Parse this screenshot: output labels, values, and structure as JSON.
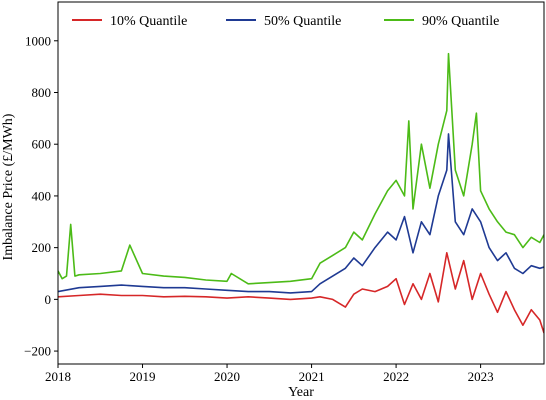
{
  "chart_data": {
    "type": "line",
    "xlabel": "Year",
    "ylabel": "Imbalance Price (£/MWh)",
    "xlim": [
      2018.0,
      2023.75
    ],
    "ylim": [
      -250,
      1150
    ],
    "xticks": [
      2018,
      2019,
      2020,
      2021,
      2022,
      2023
    ],
    "xtick_labels": [
      "2018",
      "2019",
      "2020",
      "2021",
      "2022",
      "2023"
    ],
    "yticks": [
      -200,
      0,
      200,
      400,
      600,
      800,
      1000
    ],
    "ytick_labels": [
      "−200",
      "0",
      "200",
      "400",
      "600",
      "800",
      "1000"
    ],
    "grid": false,
    "legend_position": "top",
    "colors": {
      "q10": "#d62728",
      "q50": "#1f3a93",
      "q90": "#4cbb17"
    },
    "series": [
      {
        "key": "q10",
        "name": "10% Quantile",
        "x": [
          2018.0,
          2018.25,
          2018.5,
          2018.75,
          2019.0,
          2019.25,
          2019.5,
          2019.75,
          2020.0,
          2020.25,
          2020.5,
          2020.75,
          2021.0,
          2021.1,
          2021.25,
          2021.4,
          2021.5,
          2021.6,
          2021.75,
          2021.9,
          2022.0,
          2022.1,
          2022.2,
          2022.3,
          2022.4,
          2022.5,
          2022.6,
          2022.7,
          2022.8,
          2022.9,
          2023.0,
          2023.1,
          2023.2,
          2023.3,
          2023.4,
          2023.5,
          2023.6,
          2023.7,
          2023.75
        ],
        "y": [
          10,
          15,
          20,
          15,
          15,
          10,
          12,
          10,
          5,
          10,
          5,
          0,
          5,
          10,
          0,
          -30,
          20,
          40,
          30,
          50,
          80,
          -20,
          60,
          0,
          100,
          -10,
          180,
          40,
          150,
          0,
          100,
          20,
          -50,
          30,
          -40,
          -100,
          -40,
          -80,
          -130
        ]
      },
      {
        "key": "q50",
        "name": "50% Quantile",
        "x": [
          2018.0,
          2018.25,
          2018.5,
          2018.75,
          2019.0,
          2019.25,
          2019.5,
          2019.75,
          2020.0,
          2020.25,
          2020.5,
          2020.75,
          2021.0,
          2021.1,
          2021.25,
          2021.4,
          2021.5,
          2021.6,
          2021.75,
          2021.9,
          2022.0,
          2022.1,
          2022.2,
          2022.3,
          2022.4,
          2022.5,
          2022.6,
          2022.62,
          2022.7,
          2022.8,
          2022.9,
          2023.0,
          2023.1,
          2023.2,
          2023.3,
          2023.4,
          2023.5,
          2023.6,
          2023.7,
          2023.75
        ],
        "y": [
          30,
          45,
          50,
          55,
          50,
          45,
          45,
          40,
          35,
          30,
          30,
          25,
          30,
          60,
          90,
          120,
          160,
          130,
          200,
          260,
          230,
          320,
          180,
          300,
          250,
          400,
          500,
          640,
          300,
          250,
          350,
          300,
          200,
          150,
          180,
          120,
          100,
          130,
          120,
          125
        ]
      },
      {
        "key": "q90",
        "name": "90% Quantile",
        "x": [
          2018.0,
          2018.05,
          2018.1,
          2018.15,
          2018.2,
          2018.25,
          2018.5,
          2018.75,
          2018.85,
          2019.0,
          2019.25,
          2019.5,
          2019.75,
          2020.0,
          2020.05,
          2020.25,
          2020.5,
          2020.75,
          2021.0,
          2021.1,
          2021.25,
          2021.4,
          2021.5,
          2021.6,
          2021.75,
          2021.9,
          2022.0,
          2022.1,
          2022.15,
          2022.2,
          2022.3,
          2022.4,
          2022.5,
          2022.6,
          2022.62,
          2022.7,
          2022.8,
          2022.9,
          2022.95,
          2023.0,
          2023.1,
          2023.2,
          2023.3,
          2023.4,
          2023.5,
          2023.6,
          2023.7,
          2023.75
        ],
        "y": [
          110,
          80,
          90,
          290,
          90,
          95,
          100,
          110,
          210,
          100,
          90,
          85,
          75,
          70,
          100,
          60,
          65,
          70,
          80,
          140,
          170,
          200,
          260,
          230,
          330,
          420,
          460,
          400,
          690,
          350,
          600,
          430,
          600,
          730,
          950,
          500,
          400,
          600,
          720,
          420,
          350,
          300,
          260,
          250,
          200,
          240,
          220,
          250
        ]
      }
    ]
  }
}
